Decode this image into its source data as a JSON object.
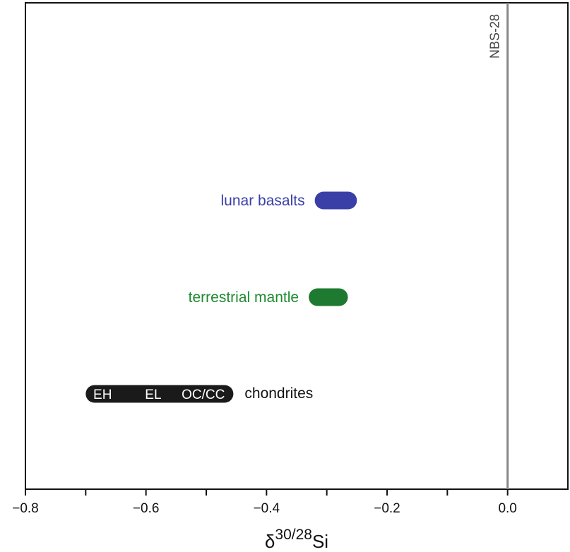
{
  "chart_data": {
    "type": "range",
    "xlabel": {
      "symbol": "δ",
      "superscript": "30/28",
      "element": "Si"
    },
    "xlim": [
      -0.8,
      0.1
    ],
    "xticks": [
      {
        "value": -0.8,
        "label": "−0.8"
      },
      {
        "value": -0.6,
        "label": "−0.6"
      },
      {
        "value": -0.4,
        "label": "−0.4"
      },
      {
        "value": -0.2,
        "label": "−0.2"
      },
      {
        "value": 0.0,
        "label": "0.0"
      }
    ],
    "minor_ticks": [
      -0.7,
      -0.5,
      -0.3,
      -0.1
    ],
    "reference_line": {
      "value": 0.0,
      "label": "NBS-28",
      "color": "#888888"
    },
    "ranges": [
      {
        "name": "lunar basalts",
        "x_min": -0.32,
        "x_max": -0.25,
        "color": "#3a3fa8",
        "label_color": "#3a3fa8",
        "label_side": "left"
      },
      {
        "name": "terrestrial mantle",
        "x_min": -0.33,
        "x_max": -0.265,
        "color": "#1e7a30",
        "label_color": "#1e8a30",
        "label_side": "left"
      },
      {
        "name": "chondrites",
        "x_min": -0.7,
        "x_max": -0.455,
        "color": "#1a1a1a",
        "label_color": "#111111",
        "label_side": "right",
        "segments": [
          {
            "label": "EH",
            "x": -0.672
          },
          {
            "label": "EL",
            "x": -0.588
          },
          {
            "label": "OC/CC",
            "x": -0.505
          }
        ]
      }
    ],
    "grid": false
  }
}
